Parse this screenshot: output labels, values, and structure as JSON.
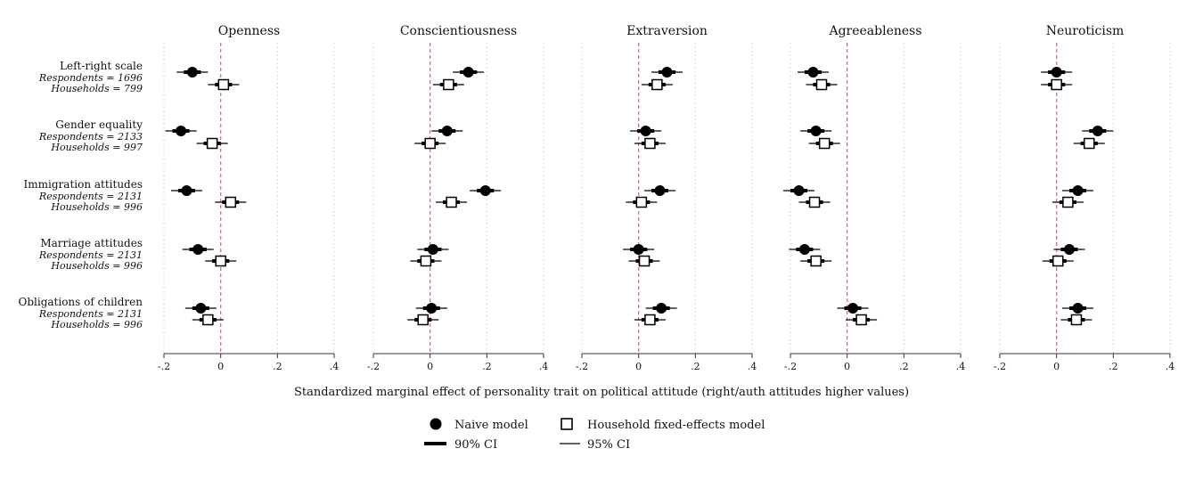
{
  "chart_data": {
    "type": "scatter",
    "xlabel": "Standardized marginal effect of personality trait on political attitude (right/auth attitudes higher values)",
    "xlim": [
      -0.2,
      0.4
    ],
    "x_ticks": [
      -0.2,
      0,
      0.2,
      0.4
    ],
    "x_tick_labels": [
      "-.2",
      "0",
      ".2",
      ".4"
    ],
    "reference_line": 0,
    "grid": "vertical dotted",
    "panels": [
      {
        "title": "Openness",
        "naive": [
          -0.1,
          -0.14,
          -0.12,
          -0.08,
          -0.07
        ],
        "fe": [
          0.01,
          -0.03,
          0.035,
          0.0,
          -0.045
        ]
      },
      {
        "title": "Conscientiousness",
        "naive": [
          0.135,
          0.06,
          0.195,
          0.01,
          0.005
        ],
        "fe": [
          0.065,
          0.0,
          0.075,
          -0.015,
          -0.025
        ]
      },
      {
        "title": "Extraversion",
        "naive": [
          0.1,
          0.025,
          0.075,
          0.0,
          0.08
        ],
        "fe": [
          0.065,
          0.04,
          0.01,
          0.02,
          0.04
        ]
      },
      {
        "title": "Agreeableness",
        "naive": [
          -0.12,
          -0.11,
          -0.17,
          -0.15,
          0.02
        ],
        "fe": [
          -0.09,
          -0.08,
          -0.115,
          -0.11,
          0.05
        ]
      },
      {
        "title": "Neuroticism",
        "naive": [
          0.0,
          0.145,
          0.075,
          0.045,
          0.075
        ],
        "fe": [
          0.0,
          0.115,
          0.04,
          0.005,
          0.07
        ]
      }
    ],
    "ci90_halfwidth": 0.03,
    "ci95_halfwidth": 0.055,
    "rows": [
      {
        "label": "Left-right scale",
        "respondents": "Respondents = 1696",
        "households": "Households = 799"
      },
      {
        "label": "Gender equality",
        "respondents": "Respondents = 2133",
        "households": "Households = 997"
      },
      {
        "label": "Immigration attitudes",
        "respondents": "Respondents = 2131",
        "households": "Households = 996"
      },
      {
        "label": "Marriage attitudes",
        "respondents": "Respondents = 2131",
        "households": "Households = 996"
      },
      {
        "label": "Obligations of children",
        "respondents": "Respondents = 2131",
        "households": "Households = 996"
      }
    ],
    "legend": {
      "naive": "Naive model",
      "fe": "Household fixed-effects model",
      "ci90": "90% CI",
      "ci95": "95% CI",
      "placement": "bottom-center"
    },
    "colors": {
      "marker": "#000000",
      "reference": "#d4708a",
      "grid": "#cccccc",
      "axis": "#333333"
    }
  }
}
